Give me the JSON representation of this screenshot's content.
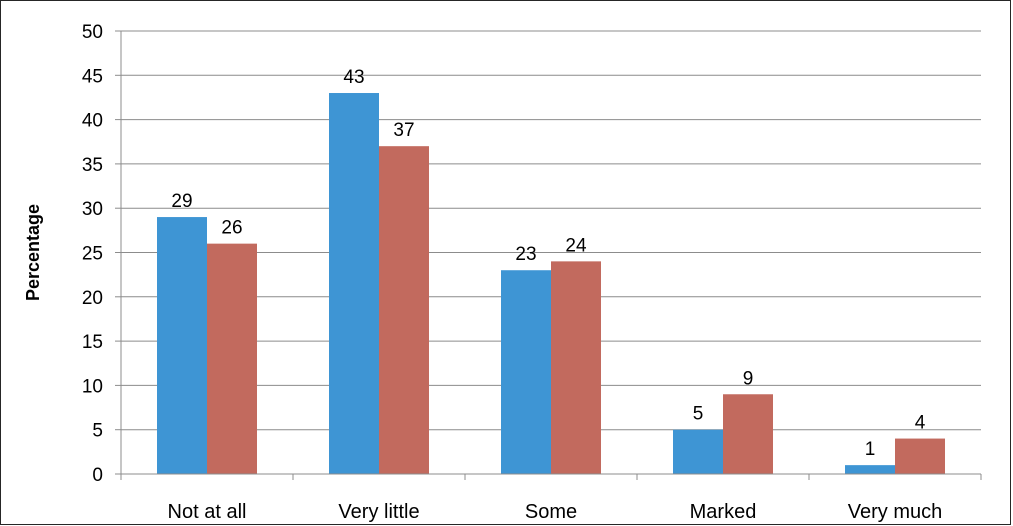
{
  "chart_data": {
    "type": "bar",
    "title": "",
    "xlabel": "",
    "ylabel": "Percentage",
    "ylim": [
      0,
      50
    ],
    "yticks": [
      0,
      5,
      10,
      15,
      20,
      25,
      30,
      35,
      40,
      45,
      50
    ],
    "categories": [
      "Not at all",
      "Very little",
      "Some",
      "Marked",
      "Very much"
    ],
    "series": [
      {
        "values": [
          29,
          43,
          23,
          5,
          1
        ],
        "color": "#3E95D4"
      },
      {
        "values": [
          26,
          37,
          24,
          9,
          4
        ],
        "color": "#C26A5E"
      }
    ],
    "grid": true,
    "legend": "none",
    "data_labels": true
  }
}
